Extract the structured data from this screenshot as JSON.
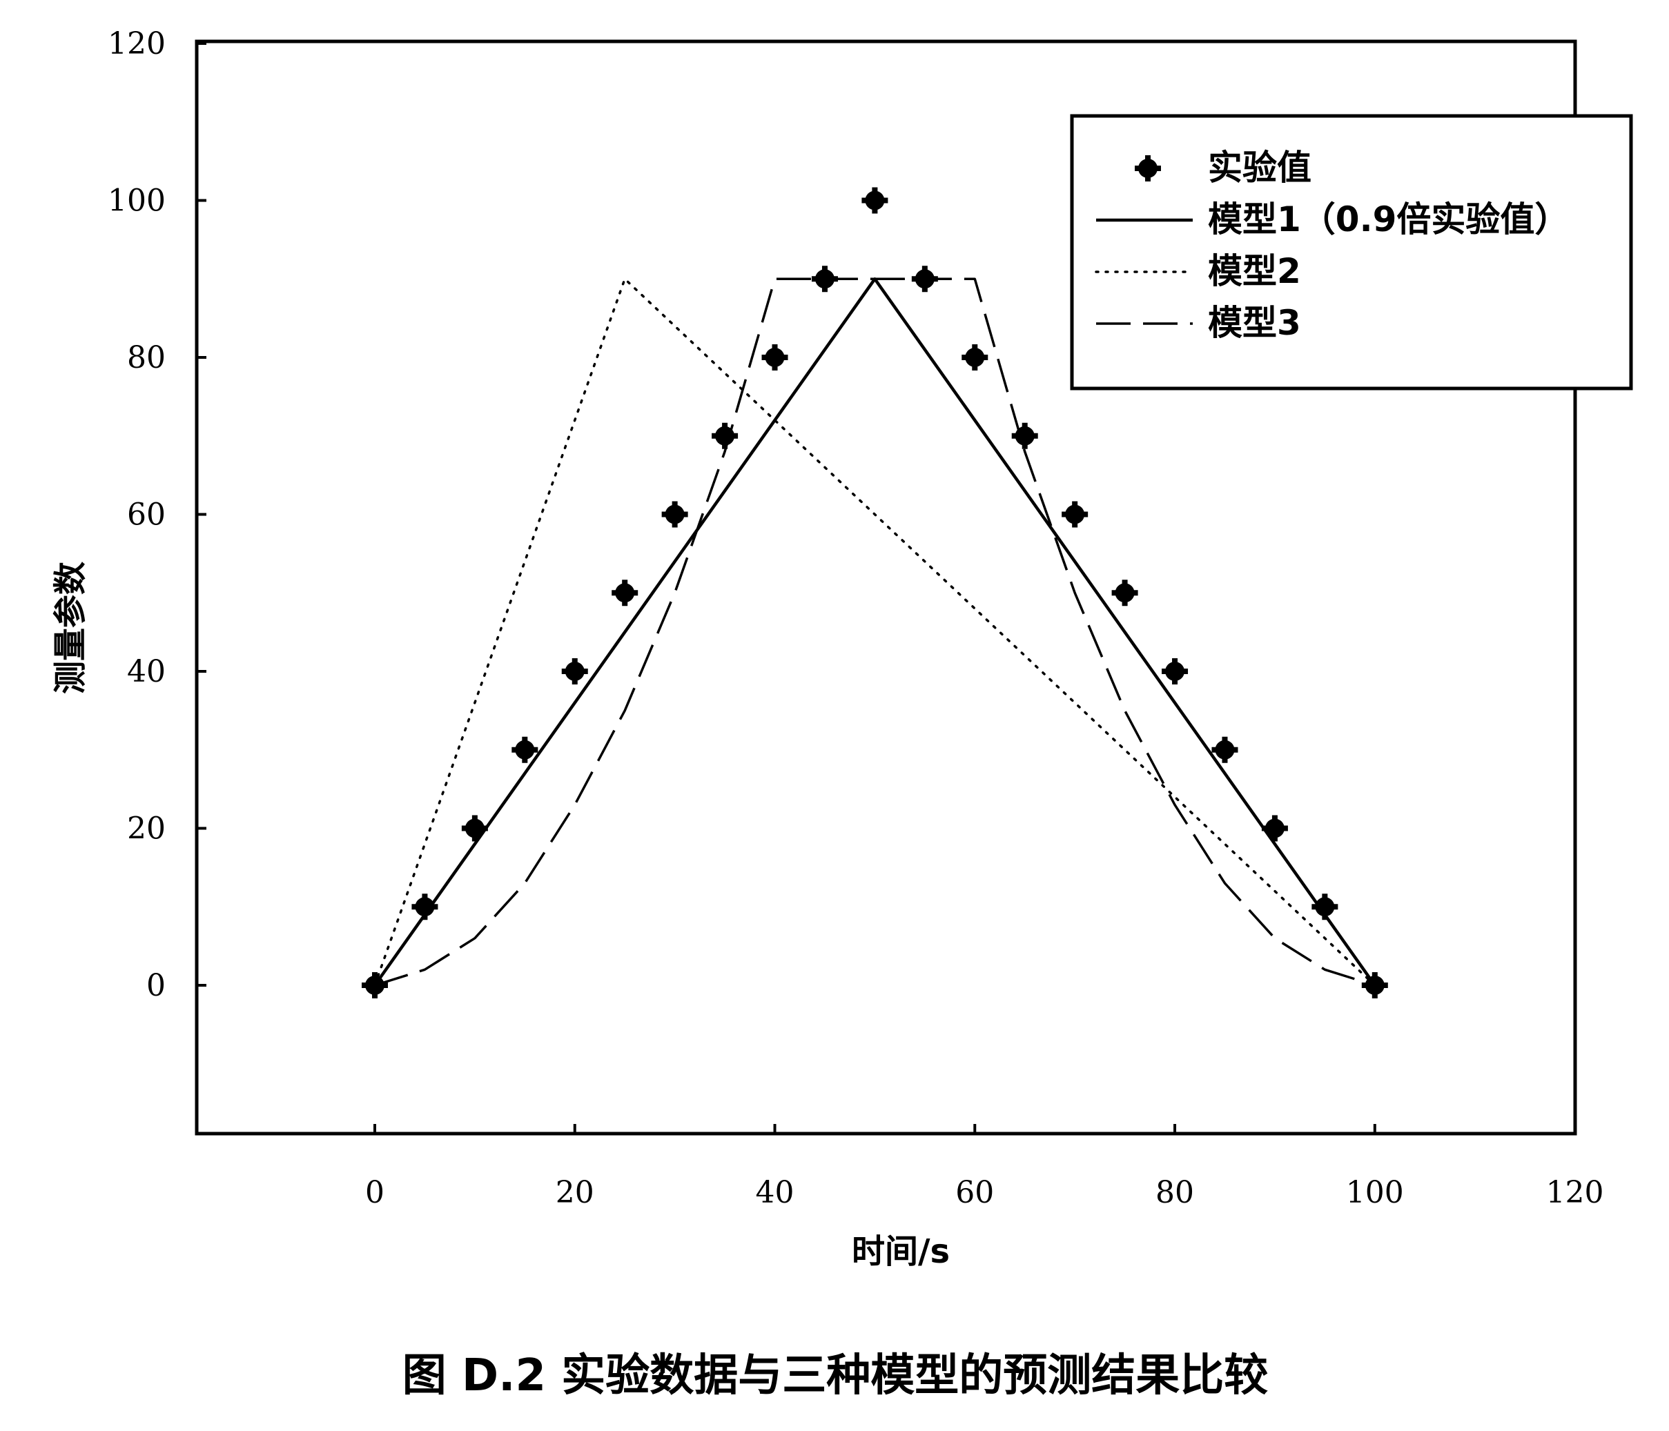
{
  "chart_data": {
    "type": "line",
    "caption": "图 D.2 实验数据与三种模型的预测结果比较",
    "xlabel": "时间/s",
    "ylabel": "测量参数",
    "xlim": [
      -18,
      120
    ],
    "ylim": [
      -18,
      120
    ],
    "xticks": [
      0,
      20,
      40,
      60,
      80,
      100,
      120
    ],
    "yticks": [
      0,
      20,
      40,
      60,
      80,
      100,
      120
    ],
    "x_tick_labels": [
      "0",
      "20",
      "40",
      "60",
      "80",
      "100",
      "120"
    ],
    "y_tick_labels": [
      "0",
      "20",
      "40",
      "60",
      "80",
      "100",
      "120"
    ],
    "grid": false,
    "legend_position": "top-right",
    "series": [
      {
        "name": "实验值",
        "style": "markers",
        "x": [
          0,
          5,
          10,
          15,
          20,
          25,
          30,
          35,
          40,
          45,
          50,
          55,
          60,
          65,
          70,
          75,
          80,
          85,
          90,
          95,
          100
        ],
        "y": [
          0,
          10,
          20,
          30,
          40,
          50,
          60,
          70,
          80,
          90,
          100,
          90,
          80,
          70,
          60,
          50,
          40,
          30,
          20,
          10,
          0
        ]
      },
      {
        "name": "模型1（0.9倍实验值）",
        "style": "solid",
        "x": [
          0,
          50,
          100
        ],
        "y": [
          0,
          90,
          0
        ]
      },
      {
        "name": "模型2",
        "style": "dotted",
        "x": [
          0,
          25,
          100
        ],
        "y": [
          0,
          90,
          0
        ]
      },
      {
        "name": "模型3",
        "style": "dashed",
        "x": [
          0,
          5,
          10,
          15,
          20,
          25,
          30,
          35,
          40,
          45,
          50,
          55,
          60,
          65,
          70,
          75,
          80,
          85,
          90,
          95,
          100
        ],
        "y": [
          0,
          2,
          6,
          13,
          23,
          35,
          50,
          68,
          90,
          90,
          90,
          90,
          90,
          68,
          50,
          35,
          23,
          13,
          6,
          2,
          0
        ]
      }
    ]
  }
}
